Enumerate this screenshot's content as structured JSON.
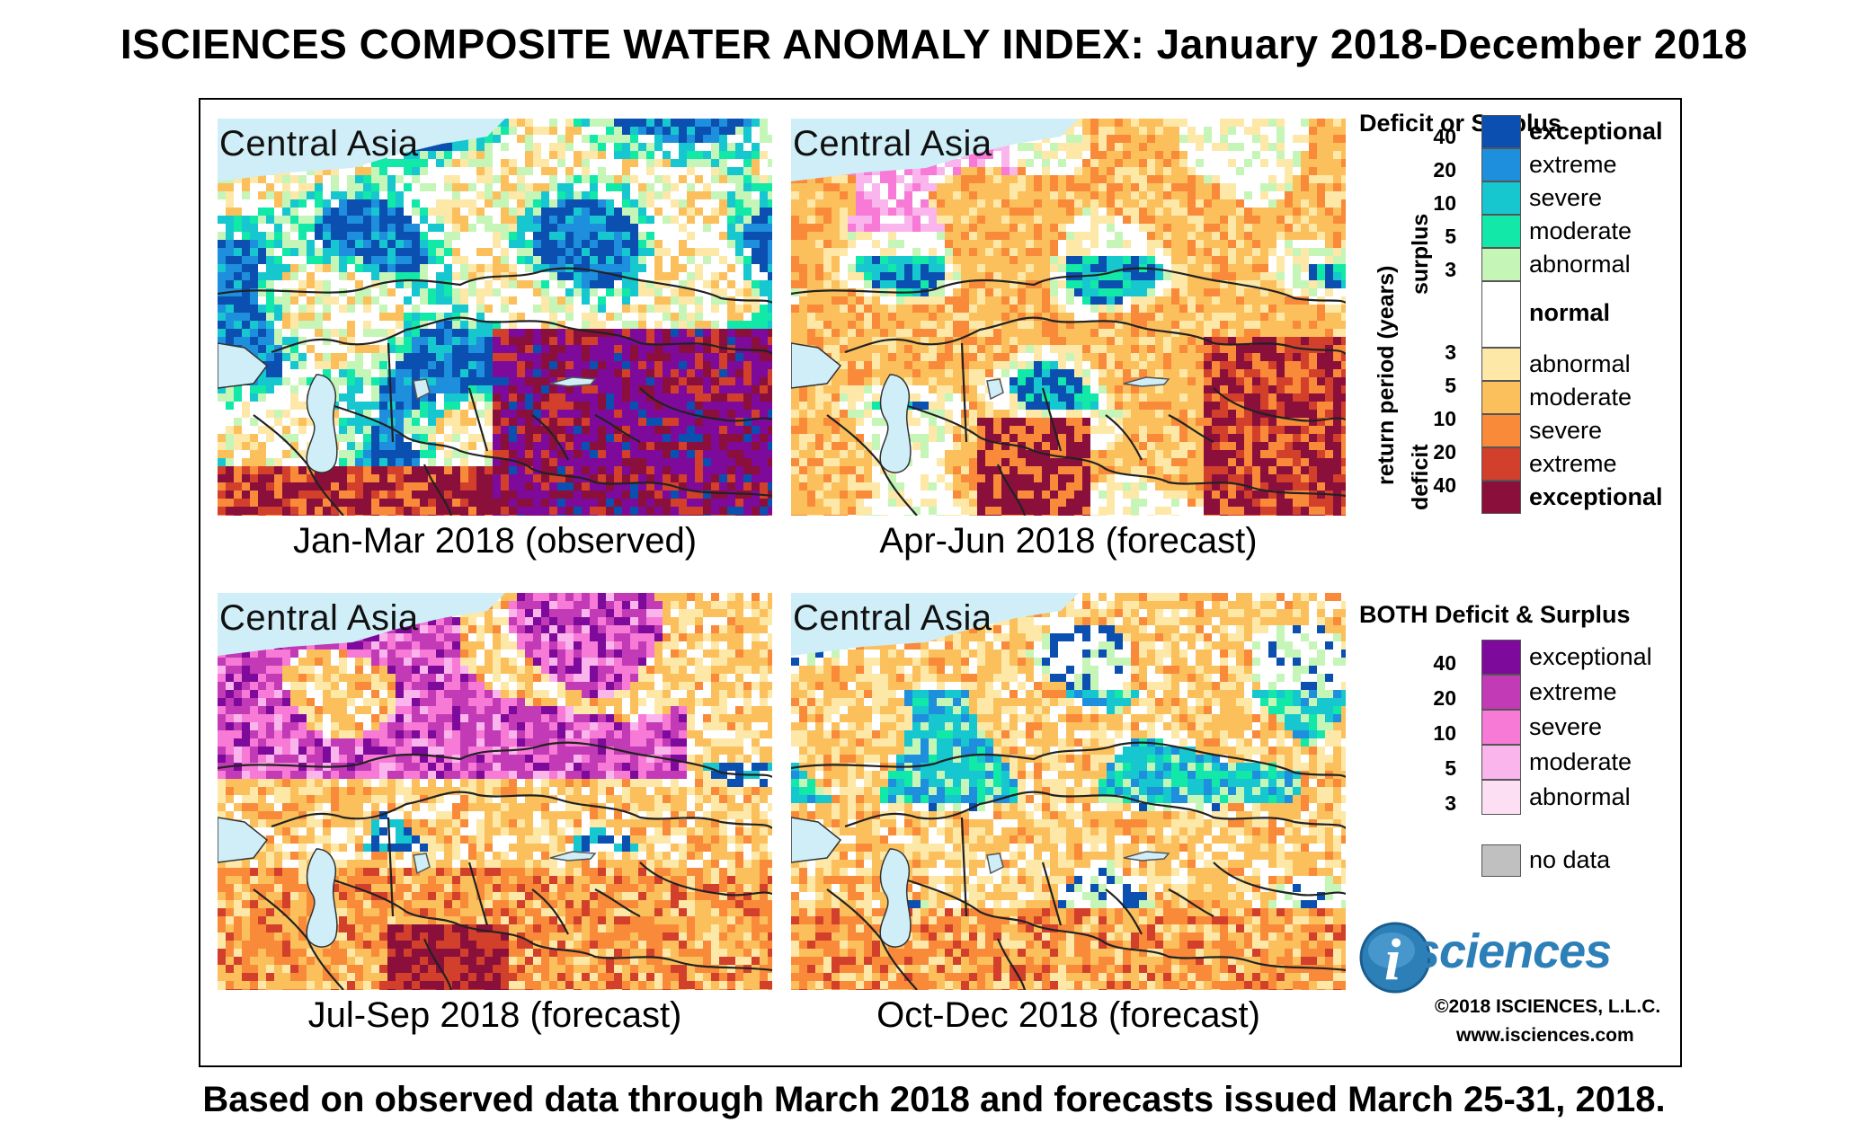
{
  "title": "ISCIENCES COMPOSITE WATER ANOMALY INDEX: January 2018-December 2018",
  "footer": "Based on observed data through March 2018 and forecasts issued March 25-31, 2018.",
  "region": "Central Asia",
  "panels": [
    {
      "caption": "Jan-Mar 2018 (observed)",
      "scheme": "jan"
    },
    {
      "caption": "Apr-Jun 2018 (forecast)",
      "scheme": "apr"
    },
    {
      "caption": "Jul-Sep 2018 (forecast)",
      "scheme": "jul"
    },
    {
      "caption": "Oct-Dec 2018 (forecast)",
      "scheme": "oct"
    }
  ],
  "legend": {
    "deficit_surplus": {
      "heading": "Deficit or Surplus",
      "axis_label": "return period (years)",
      "surplus_label": "surplus",
      "deficit_label": "deficit",
      "surplus": [
        {
          "label": "exceptional",
          "color": "#0b4fb0",
          "bold": true
        },
        {
          "label": "extreme",
          "color": "#1d8fdc",
          "bold": false
        },
        {
          "label": "severe",
          "color": "#16c7cf",
          "bold": false
        },
        {
          "label": "moderate",
          "color": "#12e8a8",
          "bold": false
        },
        {
          "label": "abnormal",
          "color": "#c6f5b8",
          "bold": false
        }
      ],
      "surplus_ticks": [
        "40",
        "20",
        "10",
        "5",
        "3"
      ],
      "normal": {
        "label": "normal",
        "color": "#ffffff"
      },
      "deficit": [
        {
          "label": "abnormal",
          "color": "#fde8a8",
          "bold": false
        },
        {
          "label": "moderate",
          "color": "#fbc05c",
          "bold": false
        },
        {
          "label": "severe",
          "color": "#f88a3a",
          "bold": false
        },
        {
          "label": "extreme",
          "color": "#d2402c",
          "bold": false
        },
        {
          "label": "exceptional",
          "color": "#8a0f3a",
          "bold": true
        }
      ],
      "deficit_ticks": [
        "3",
        "5",
        "10",
        "20",
        "40"
      ]
    },
    "both": {
      "heading": "BOTH Deficit & Surplus",
      "items": [
        {
          "label": "exceptional",
          "color": "#7d0a9a"
        },
        {
          "label": "extreme",
          "color": "#c23ab6"
        },
        {
          "label": "severe",
          "color": "#f77ad6"
        },
        {
          "label": "moderate",
          "color": "#fab6ec"
        },
        {
          "label": "abnormal",
          "color": "#fddff4"
        }
      ],
      "ticks": [
        "40",
        "20",
        "10",
        "5",
        "3"
      ]
    },
    "no_data": {
      "label": "no data",
      "color": "#c0c0c0"
    }
  },
  "logo": {
    "letter": "i",
    "text": "sciences",
    "color": "#2d7fb8"
  },
  "copyright": "©2018 ISCIENCES, L.L.C.",
  "website": "www.isciences.com"
}
